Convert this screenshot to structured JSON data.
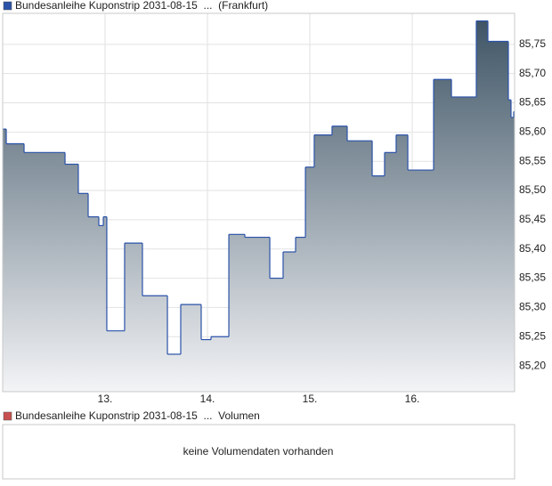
{
  "chart_data": {
    "type": "step-area",
    "series": [
      {
        "name": "Bundesanleihe Kuponstrip 2031-08-15  ...  (Frankfurt)",
        "color": "#2a52a8",
        "x": [
          12.0,
          12.035,
          12.209,
          12.609,
          12.739,
          12.835,
          12.939,
          12.983,
          13.017,
          13.191,
          13.365,
          13.609,
          13.739,
          13.939,
          14.035,
          14.209,
          14.365,
          14.609,
          14.739,
          14.861,
          14.957,
          15.043,
          15.217,
          15.365,
          15.609,
          15.73,
          15.843,
          15.957,
          16.209,
          16.383,
          16.626,
          16.739,
          16.939,
          16.965,
          16.991
        ],
        "values": [
          85.605,
          85.58,
          85.565,
          85.545,
          85.495,
          85.455,
          85.44,
          85.455,
          85.26,
          85.41,
          85.32,
          85.22,
          85.305,
          85.245,
          85.25,
          85.425,
          85.42,
          85.35,
          85.395,
          85.42,
          85.54,
          85.595,
          85.61,
          85.585,
          85.525,
          85.565,
          85.595,
          85.535,
          85.69,
          85.66,
          85.79,
          85.755,
          85.655,
          85.625,
          85.635
        ]
      }
    ],
    "xlim": [
      12,
      17
    ],
    "xticks": [
      {
        "value": 13,
        "label": "13."
      },
      {
        "value": 14,
        "label": "14."
      },
      {
        "value": 15,
        "label": "15."
      },
      {
        "value": 16,
        "label": "16."
      }
    ],
    "ylim": [
      85.156,
      85.803
    ],
    "yticks": [
      {
        "value": 85.2,
        "label": "85,20"
      },
      {
        "value": 85.25,
        "label": "85,25"
      },
      {
        "value": 85.3,
        "label": "85,30"
      },
      {
        "value": 85.35,
        "label": "85,35"
      },
      {
        "value": 85.4,
        "label": "85,40"
      },
      {
        "value": 85.45,
        "label": "85,45"
      },
      {
        "value": 85.5,
        "label": "85,50"
      },
      {
        "value": 85.55,
        "label": "85,55"
      },
      {
        "value": 85.6,
        "label": "85,60"
      },
      {
        "value": 85.65,
        "label": "85,65"
      },
      {
        "value": 85.7,
        "label": "85,70"
      },
      {
        "value": 85.75,
        "label": "85,75"
      }
    ],
    "grid": true,
    "area_colors": [
      "#3f5566",
      "#f3f4f6"
    ]
  },
  "volume_panel": {
    "legend": "Bundesanleihe Kuponstrip 2031-08-15  ...  Volumen",
    "color": "#c85050",
    "message": "keine Volumendaten vorhanden"
  }
}
